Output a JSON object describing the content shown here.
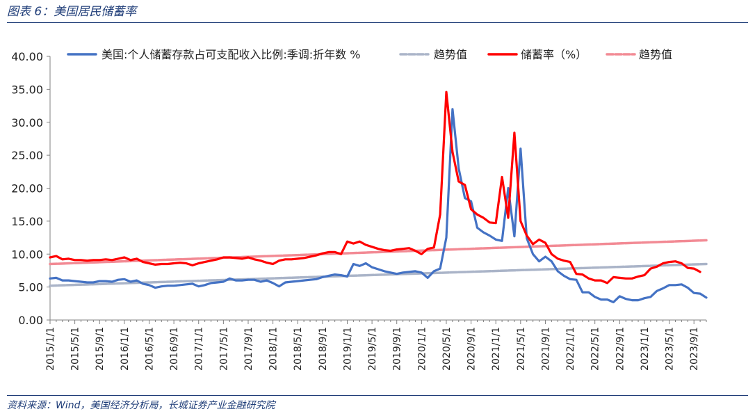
{
  "header": {
    "title": "图表 6：美国居民储蓄率"
  },
  "footer": {
    "source": "资料来源：Wind，美国经济分析局，长城证券产业金融研究院"
  },
  "colors": {
    "series_blue": "#4472c4",
    "trend_blue": "#aab4c8",
    "series_red": "#ff0000",
    "trend_red": "#f28a94",
    "rule": "#1f3d78"
  },
  "chart_data": {
    "type": "line",
    "title": "",
    "xlabel": "",
    "ylabel": "",
    "ylim": [
      0,
      40
    ],
    "yticks": [
      "0.00",
      "5.00",
      "10.00",
      "15.00",
      "20.00",
      "25.00",
      "30.00",
      "35.00",
      "40.00"
    ],
    "xticks": [
      "2015/1/1",
      "2015/5/1",
      "2015/9/1",
      "2016/1/1",
      "2016/5/1",
      "2016/9/1",
      "2017/1/1",
      "2017/5/1",
      "2017/9/1",
      "2018/1/1",
      "2018/5/1",
      "2018/9/1",
      "2019/1/1",
      "2019/5/1",
      "2019/9/1",
      "2020/1/1",
      "2020/5/1",
      "2020/9/1",
      "2021/1/1",
      "2021/5/1",
      "2021/9/1",
      "2022/1/1",
      "2022/5/1",
      "2022/9/1",
      "2023/1/1",
      "2023/5/1",
      "2023/9/1"
    ],
    "x_start": "2015-01",
    "x_end": "2023-09",
    "grid": false,
    "legend_position": "top",
    "legend": [
      {
        "label": "美国:个人储蓄存款占可支配收入比例:季调:折年数 %",
        "style": "solid",
        "color": "#4472c4"
      },
      {
        "label": "趋势值",
        "style": "dashed",
        "color": "#aab4c8"
      },
      {
        "label": "储蓄率（%）",
        "style": "solid",
        "color": "#ff0000"
      },
      {
        "label": "趋势值",
        "style": "dashed",
        "color": "#f28a94"
      }
    ],
    "series": [
      {
        "key": "blue",
        "color": "#4472c4",
        "values": [
          6.3,
          6.4,
          6.0,
          6.0,
          5.9,
          5.8,
          5.7,
          5.7,
          5.9,
          5.9,
          5.8,
          6.1,
          6.2,
          5.8,
          6.0,
          5.5,
          5.3,
          4.9,
          5.1,
          5.2,
          5.2,
          5.3,
          5.4,
          5.5,
          5.1,
          5.3,
          5.6,
          5.7,
          5.8,
          6.3,
          6.0,
          6.0,
          6.1,
          6.1,
          5.8,
          6.0,
          5.6,
          5.1,
          5.7,
          5.8,
          5.9,
          6.0,
          6.1,
          6.2,
          6.5,
          6.7,
          6.9,
          6.8,
          6.6,
          8.5,
          8.2,
          8.6,
          8.0,
          7.7,
          7.4,
          7.2,
          7.0,
          7.2,
          7.3,
          7.4,
          7.2,
          6.4,
          7.4,
          7.8,
          12.5,
          32.0,
          23.0,
          18.5,
          18.0,
          14.0,
          13.3,
          12.8,
          12.2,
          12.0,
          20.0,
          12.7,
          26.0,
          12.4,
          10.0,
          8.9,
          9.6,
          8.9,
          7.4,
          6.7,
          6.2,
          6.1,
          4.2,
          4.2,
          3.5,
          3.1,
          3.1,
          2.7,
          3.6,
          3.2,
          3.0,
          3.0,
          3.3,
          3.5,
          4.4,
          4.8,
          5.3,
          5.3,
          5.4,
          4.9,
          4.1,
          4.0,
          3.4
        ]
      },
      {
        "key": "blue_trend",
        "color": "#aab4c8",
        "values": [
          5.2,
          8.5
        ]
      },
      {
        "key": "red",
        "color": "#ff0000",
        "values": [
          9.5,
          9.7,
          9.2,
          9.3,
          9.1,
          9.1,
          9.0,
          9.1,
          9.1,
          9.2,
          9.1,
          9.3,
          9.5,
          9.1,
          9.3,
          8.8,
          8.6,
          8.4,
          8.5,
          8.5,
          8.6,
          8.7,
          8.6,
          8.3,
          8.6,
          8.8,
          9.0,
          9.2,
          9.5,
          9.5,
          9.4,
          9.3,
          9.5,
          9.2,
          9.0,
          8.7,
          8.5,
          9.0,
          9.2,
          9.2,
          9.3,
          9.4,
          9.6,
          9.8,
          10.1,
          10.3,
          10.3,
          10.0,
          11.9,
          11.6,
          11.9,
          11.4,
          11.1,
          10.8,
          10.6,
          10.5,
          10.7,
          10.8,
          10.9,
          10.5,
          10.0,
          10.8,
          11.0,
          16.0,
          34.6,
          25.5,
          21.0,
          20.5,
          16.8,
          16.0,
          15.5,
          14.8,
          14.7,
          21.7,
          15.5,
          28.4,
          15.0,
          12.8,
          11.5,
          12.2,
          11.7,
          10.0,
          9.3,
          9.0,
          8.8,
          7.0,
          6.9,
          6.3,
          6.0,
          6.0,
          5.6,
          6.5,
          6.4,
          6.3,
          6.3,
          6.6,
          6.8,
          7.8,
          8.1,
          8.6,
          8.8,
          8.9,
          8.6,
          7.9,
          7.8,
          7.3
        ]
      },
      {
        "key": "red_trend",
        "color": "#f28a94",
        "values": [
          8.5,
          12.1
        ]
      }
    ]
  }
}
